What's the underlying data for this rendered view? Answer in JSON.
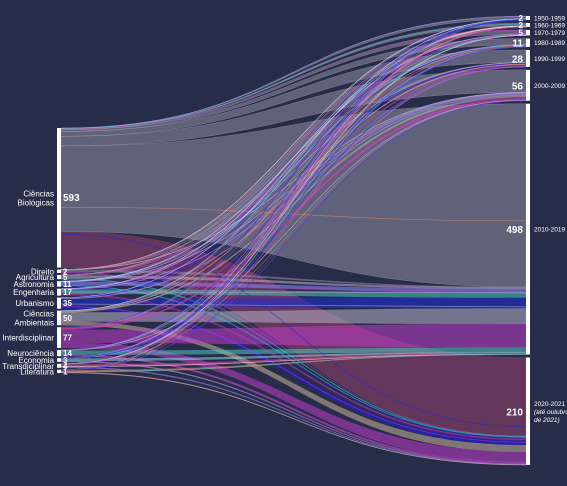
{
  "colors": {
    "background": "#272d48",
    "node_bar": "#ffffff",
    "text": "#ffffff",
    "flow_palette": [
      "#e8e4f0",
      "#b6b3c8",
      "#8f8ba8",
      "#3a2bff",
      "#1f2bd8",
      "#d04fd6",
      "#b83fb8",
      "#e24a8a",
      "#48c9c0",
      "#7fd3e6",
      "#9a87ff",
      "#c59ad0",
      "#e0876a"
    ]
  },
  "chart_data": {
    "type": "sankey",
    "title": "",
    "sources": [
      {
        "name": "Ciências Biológicas",
        "lines": [
          "Ciências",
          "Biológicas"
        ],
        "value": 593,
        "label": "593",
        "dominant": "#d9d5e4"
      },
      {
        "name": "Direito",
        "lines": [
          "Direito"
        ],
        "value": 2,
        "label": "2",
        "dominant": "#b9b6c9"
      },
      {
        "name": "Agricultura",
        "lines": [
          "Agricultura"
        ],
        "value": 5,
        "label": "5",
        "dominant": "#c8a6d6"
      },
      {
        "name": "Astronomia",
        "lines": [
          "Astronomia"
        ],
        "value": 11,
        "label": "11",
        "dominant": "#8d89ff"
      },
      {
        "name": "Engenharia",
        "lines": [
          "Engenharia"
        ],
        "value": 17,
        "label": "17",
        "dominant": "#7a2a95"
      },
      {
        "name": "Urbanismo",
        "lines": [
          "Urbanismo"
        ],
        "value": 35,
        "label": "35",
        "dominant": "#2419f2"
      },
      {
        "name": "Ciências Ambientais",
        "lines": [
          "Ciências",
          "Ambientais"
        ],
        "value": 50,
        "label": "50",
        "dominant": "#cbb39a"
      },
      {
        "name": "Interdisciplinar",
        "lines": [
          "Interdisciplinar"
        ],
        "value": 77,
        "label": "77",
        "dominant": "#c03cc9"
      },
      {
        "name": "Neurociência",
        "lines": [
          "Neurociência"
        ],
        "value": 14,
        "label": "14",
        "dominant": "#4fc6c0"
      },
      {
        "name": "Economia",
        "lines": [
          "Economia"
        ],
        "value": 3,
        "label": "3",
        "dominant": "#8fd2e8"
      },
      {
        "name": "Transdiciplinar",
        "lines": [
          "Transdiciplinar"
        ],
        "value": 4,
        "label": "4",
        "dominant": "#e0508f"
      },
      {
        "name": "Literatura",
        "lines": [
          "Literatura"
        ],
        "value": 1,
        "label": "1",
        "dominant": "#e08a6a"
      }
    ],
    "targets": [
      {
        "name": "1950-1959",
        "lines": [
          "1950-1959"
        ],
        "value": 2,
        "label": "2"
      },
      {
        "name": "1960-1969",
        "lines": [
          "1960-1969"
        ],
        "value": 2,
        "label": "2"
      },
      {
        "name": "1970-1979",
        "lines": [
          "1970-1979"
        ],
        "value": 5,
        "label": "5"
      },
      {
        "name": "1980-1989",
        "lines": [
          "1980-1989"
        ],
        "value": 11,
        "label": "11"
      },
      {
        "name": "1990-1999",
        "lines": [
          "1990-1999"
        ],
        "value": 28,
        "label": "28"
      },
      {
        "name": "2000-2009",
        "lines": [
          "2000-2009"
        ],
        "value": 56,
        "label": "56"
      },
      {
        "name": "2010-2019",
        "lines": [
          "2010-2019"
        ],
        "value": 498,
        "label": "498"
      },
      {
        "name": "2020-2021 (até outubro de 2021)",
        "lines": [
          "2020-2021",
          "(até outubro",
          "de 2021)"
        ],
        "value": 210,
        "label": "210"
      }
    ]
  }
}
